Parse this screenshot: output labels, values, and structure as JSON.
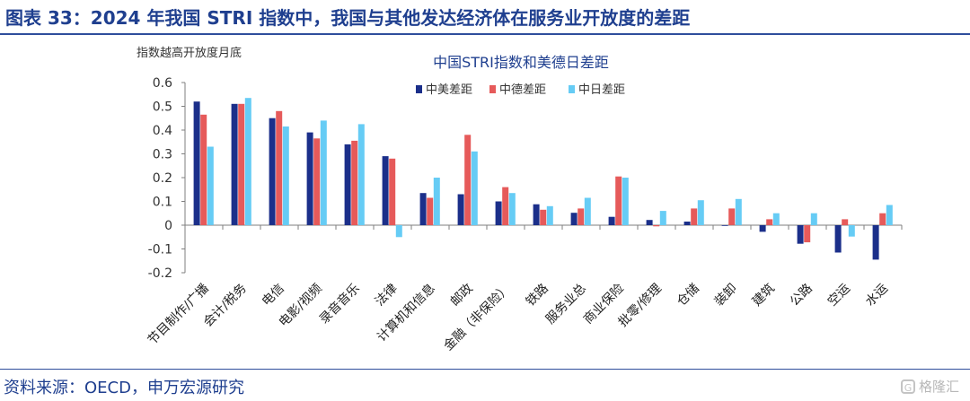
{
  "title": "图表 33：2024 年我国 STRI 指数中，我国与其他发达经济体在服务业开放度的差距",
  "source": "资料来源：OECD，申万宏源研究",
  "watermark": "格隆汇",
  "colors": {
    "series": [
      "#1b2f8a",
      "#e65a5a",
      "#66ccf5"
    ],
    "title": "#1f3f8f",
    "axis": "#333333"
  },
  "chart_data": {
    "type": "bar",
    "title": "中国STRI指数和美德日差距",
    "ylabel": "指数越高开放度月底",
    "ylim": [
      -0.2,
      0.6
    ],
    "yticks": [
      -0.2,
      -0.1,
      0,
      0.1,
      0.2,
      0.3,
      0.4,
      0.5,
      0.6
    ],
    "ytick_labels": [
      "-0.2",
      "-0.1",
      "0",
      "0.1",
      "0.2",
      "0.3",
      "0.4",
      "0.5",
      "0.6"
    ],
    "legend_position": "top",
    "grid": false,
    "categories": [
      "节目制作/广播",
      "会计/税务",
      "电信",
      "电影/视频",
      "录音音乐",
      "法律",
      "计算机和信息",
      "邮政",
      "金融（非保险）",
      "铁路",
      "服务业总",
      "商业保险",
      "批零/修理",
      "仓储",
      "装卸",
      "建筑",
      "公路",
      "空运",
      "水运"
    ],
    "series": [
      {
        "name": "中美差距",
        "values": [
          0.52,
          0.51,
          0.45,
          0.39,
          0.34,
          0.29,
          0.135,
          0.13,
          0.1,
          0.088,
          0.052,
          0.035,
          0.022,
          0.015,
          0.0,
          -0.028,
          -0.078,
          -0.115,
          -0.145
        ]
      },
      {
        "name": "中德差距",
        "values": [
          0.465,
          0.51,
          0.48,
          0.365,
          0.355,
          0.28,
          0.115,
          0.38,
          0.16,
          0.065,
          0.07,
          0.205,
          -0.005,
          0.07,
          0.07,
          0.025,
          -0.072,
          0.025,
          0.05
        ]
      },
      {
        "name": "中日差距",
        "values": [
          0.33,
          0.535,
          0.415,
          0.44,
          0.425,
          -0.05,
          0.2,
          0.31,
          0.135,
          0.08,
          0.115,
          0.2,
          0.06,
          0.105,
          0.11,
          0.05,
          0.05,
          -0.048,
          0.085
        ]
      }
    ]
  }
}
